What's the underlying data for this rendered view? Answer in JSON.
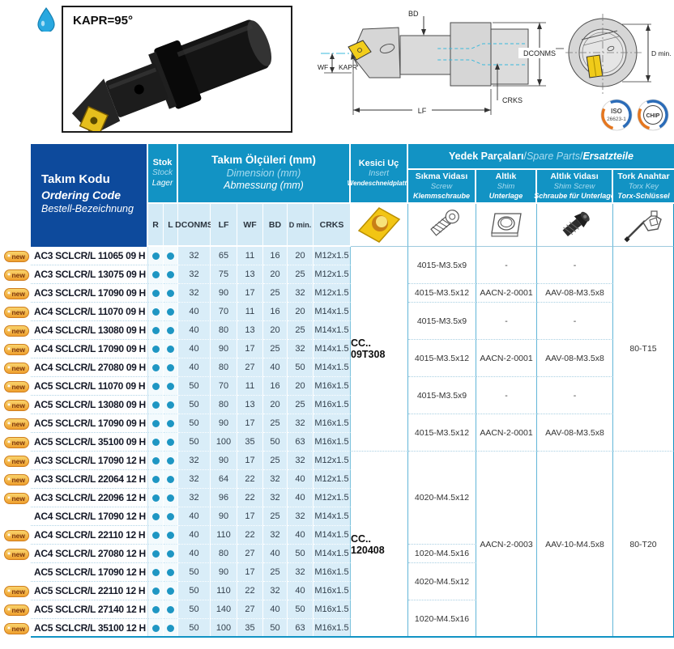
{
  "page": {
    "photo_label": "KAPR=95°"
  },
  "badges": {
    "iso_line1": "ISO",
    "iso_line2": "26623-1",
    "chip": "CHIP"
  },
  "drawing": {
    "labels": {
      "bd": "BD",
      "wf": "WF",
      "kapr": "KAPR",
      "lf": "LF",
      "crks": "CRKS",
      "dconms": "DCONMS",
      "dmin": "D min."
    }
  },
  "colors": {
    "accent_teal": "#1293c4",
    "header_blue": "#0d4a9c",
    "row_light_blue": "#d9edf8",
    "stock_dot": "#1e96c3",
    "new_badge_orange": "#efa02f",
    "insert_yellow": "#f2c514"
  },
  "icons": {
    "coolant_drop": "coolant-drop-icon",
    "insert_photo": "insert-photo",
    "screw_photo": "screw-photo",
    "shim_photo": "shim-photo",
    "shim_screw_photo": "shim-screw-photo",
    "torx_key_photo": "torx-key-photo"
  },
  "table": {
    "ordering_header": {
      "tr": "Takım Kodu",
      "en": "Ordering Code",
      "de": "Bestell-Bezeichnung"
    },
    "stock_header": {
      "tr": "Stok",
      "en": "Stock",
      "de": "Lager"
    },
    "dimensions_header": {
      "tr": "Takım Ölçüleri (mm)",
      "en": "Dimension (mm)",
      "de": "Abmessung (mm)"
    },
    "insert_header": {
      "tr": "Kesici Uç",
      "en": "Insert",
      "de": "Wendeschneidplatte"
    },
    "spare_header": {
      "tr": "Yedek Parçaları",
      "en": "Spare Parts",
      "de": "Ersatzteile",
      "sep": " / "
    },
    "spare_cols": [
      {
        "tr": "Sıkma Vidası",
        "en": "Screw",
        "de": "Klemmschraube"
      },
      {
        "tr": "Altlık",
        "en": "Shim",
        "de": "Unterlage"
      },
      {
        "tr": "Altlık Vidası",
        "en": "Shim Screw",
        "de": "Schraube für Unterlage"
      },
      {
        "tr": "Tork Anahtar",
        "en": "Torx Key",
        "de": "Torx-Schlüssel"
      }
    ],
    "sub_cols": [
      "R",
      "L",
      "DCONMS",
      "LF",
      "WF",
      "BD",
      "D min.",
      "CRKS"
    ],
    "new_label": "new",
    "new_star": "✶",
    "rows": [
      {
        "is_new": true,
        "code": "AC3 SCLCR/L 11065 09 H",
        "r": true,
        "l": true,
        "dconms": 32,
        "lf": 65,
        "wf": 11,
        "bd": 16,
        "dmin": 20,
        "crks": "M12x1.5"
      },
      {
        "is_new": true,
        "code": "AC3 SCLCR/L 13075 09 H",
        "r": true,
        "l": true,
        "dconms": 32,
        "lf": 75,
        "wf": 13,
        "bd": 20,
        "dmin": 25,
        "crks": "M12x1.5"
      },
      {
        "is_new": true,
        "code": "AC3 SCLCR/L 17090 09 H",
        "r": true,
        "l": true,
        "dconms": 32,
        "lf": 90,
        "wf": 17,
        "bd": 25,
        "dmin": 32,
        "crks": "M12x1.5"
      },
      {
        "is_new": true,
        "code": "AC4 SCLCR/L 11070 09 H",
        "r": true,
        "l": true,
        "dconms": 40,
        "lf": 70,
        "wf": 11,
        "bd": 16,
        "dmin": 20,
        "crks": "M14x1.5"
      },
      {
        "is_new": true,
        "code": "AC4 SCLCR/L 13080 09 H",
        "r": true,
        "l": true,
        "dconms": 40,
        "lf": 80,
        "wf": 13,
        "bd": 20,
        "dmin": 25,
        "crks": "M14x1.5"
      },
      {
        "is_new": true,
        "code": "AC4 SCLCR/L 17090 09 H",
        "r": true,
        "l": true,
        "dconms": 40,
        "lf": 90,
        "wf": 17,
        "bd": 25,
        "dmin": 32,
        "crks": "M14x1.5"
      },
      {
        "is_new": true,
        "code": "AC4 SCLCR/L 27080 09 H",
        "r": true,
        "l": true,
        "dconms": 40,
        "lf": 80,
        "wf": 27,
        "bd": 40,
        "dmin": 50,
        "crks": "M14x1.5"
      },
      {
        "is_new": true,
        "code": "AC5 SCLCR/L 11070 09 H",
        "r": true,
        "l": true,
        "dconms": 50,
        "lf": 70,
        "wf": 11,
        "bd": 16,
        "dmin": 20,
        "crks": "M16x1.5"
      },
      {
        "is_new": true,
        "code": "AC5 SCLCR/L 13080 09 H",
        "r": true,
        "l": true,
        "dconms": 50,
        "lf": 80,
        "wf": 13,
        "bd": 20,
        "dmin": 25,
        "crks": "M16x1.5"
      },
      {
        "is_new": true,
        "code": "AC5 SCLCR/L 17090 09 H",
        "r": true,
        "l": true,
        "dconms": 50,
        "lf": 90,
        "wf": 17,
        "bd": 25,
        "dmin": 32,
        "crks": "M16x1.5"
      },
      {
        "is_new": true,
        "code": "AC5 SCLCR/L 35100 09 H",
        "r": true,
        "l": true,
        "dconms": 50,
        "lf": 100,
        "wf": 35,
        "bd": 50,
        "dmin": 63,
        "crks": "M16x1.5"
      },
      {
        "is_new": true,
        "code": "AC3 SCLCR/L 17090 12 H",
        "r": true,
        "l": true,
        "dconms": 32,
        "lf": 90,
        "wf": 17,
        "bd": 25,
        "dmin": 32,
        "crks": "M12x1.5"
      },
      {
        "is_new": true,
        "code": "AC3 SCLCR/L 22064 12 H",
        "r": true,
        "l": true,
        "dconms": 32,
        "lf": 64,
        "wf": 22,
        "bd": 32,
        "dmin": 40,
        "crks": "M12x1.5"
      },
      {
        "is_new": true,
        "code": "AC3 SCLCR/L 22096 12 H",
        "r": true,
        "l": true,
        "dconms": 32,
        "lf": 96,
        "wf": 22,
        "bd": 32,
        "dmin": 40,
        "crks": "M12x1.5"
      },
      {
        "is_new": false,
        "code": "AC4 SCLCR/L 17090 12 H",
        "r": true,
        "l": true,
        "dconms": 40,
        "lf": 90,
        "wf": 17,
        "bd": 25,
        "dmin": 32,
        "crks": "M14x1.5"
      },
      {
        "is_new": true,
        "code": "AC4 SCLCR/L 22110 12 H",
        "r": true,
        "l": true,
        "dconms": 40,
        "lf": 110,
        "wf": 22,
        "bd": 32,
        "dmin": 40,
        "crks": "M14x1.5"
      },
      {
        "is_new": true,
        "code": "AC4 SCLCR/L 27080 12 H",
        "r": true,
        "l": true,
        "dconms": 40,
        "lf": 80,
        "wf": 27,
        "bd": 40,
        "dmin": 50,
        "crks": "M14x1.5"
      },
      {
        "is_new": false,
        "code": "AC5 SCLCR/L 17090 12 H",
        "r": true,
        "l": true,
        "dconms": 50,
        "lf": 90,
        "wf": 17,
        "bd": 25,
        "dmin": 32,
        "crks": "M16x1.5"
      },
      {
        "is_new": true,
        "code": "AC5 SCLCR/L 22110 12 H",
        "r": true,
        "l": true,
        "dconms": 50,
        "lf": 110,
        "wf": 22,
        "bd": 32,
        "dmin": 40,
        "crks": "M16x1.5"
      },
      {
        "is_new": true,
        "code": "AC5 SCLCR/L 27140 12 H",
        "r": true,
        "l": true,
        "dconms": 50,
        "lf": 140,
        "wf": 27,
        "bd": 40,
        "dmin": 50,
        "crks": "M16x1.5"
      },
      {
        "is_new": true,
        "code": "AC5 SCLCR/L 35100 12 H",
        "r": true,
        "l": true,
        "dconms": 50,
        "lf": 100,
        "wf": 35,
        "bd": 50,
        "dmin": 63,
        "crks": "M16x1.5"
      }
    ],
    "merged": {
      "insert": [
        {
          "start": 1,
          "span": 11,
          "text": "CC.. 09T308"
        },
        {
          "start": 12,
          "span": 10,
          "text": "CC.. 120408"
        }
      ],
      "screw": [
        {
          "start": 1,
          "span": 2,
          "text": "4015-M3.5x9"
        },
        {
          "start": 3,
          "span": 1,
          "text": "4015-M3.5x12"
        },
        {
          "start": 4,
          "span": 2,
          "text": "4015-M3.5x9"
        },
        {
          "start": 6,
          "span": 2,
          "text": "4015-M3.5x12"
        },
        {
          "start": 8,
          "span": 2,
          "text": "4015-M3.5x9"
        },
        {
          "start": 10,
          "span": 2,
          "text": "4015-M3.5x12"
        },
        {
          "start": 12,
          "span": 5,
          "text": "4020-M4.5x12"
        },
        {
          "start": 17,
          "span": 1,
          "text": "1020-M4.5x16"
        },
        {
          "start": 18,
          "span": 2,
          "text": "4020-M4.5x12"
        },
        {
          "start": 20,
          "span": 2,
          "text": "1020-M4.5x16"
        }
      ],
      "shim": [
        {
          "start": 1,
          "span": 2,
          "text": "-"
        },
        {
          "start": 3,
          "span": 1,
          "text": "AACN-2-0001"
        },
        {
          "start": 4,
          "span": 2,
          "text": "-"
        },
        {
          "start": 6,
          "span": 2,
          "text": "AACN-2-0001"
        },
        {
          "start": 8,
          "span": 2,
          "text": "-"
        },
        {
          "start": 10,
          "span": 2,
          "text": "AACN-2-0001"
        },
        {
          "start": 12,
          "span": 10,
          "text": "AACN-2-0003"
        }
      ],
      "shim_screw": [
        {
          "start": 1,
          "span": 2,
          "text": "-"
        },
        {
          "start": 3,
          "span": 1,
          "text": "AAV-08-M3.5x8"
        },
        {
          "start": 4,
          "span": 2,
          "text": "-"
        },
        {
          "start": 6,
          "span": 2,
          "text": "AAV-08-M3.5x8"
        },
        {
          "start": 8,
          "span": 2,
          "text": "-"
        },
        {
          "start": 10,
          "span": 2,
          "text": "AAV-08-M3.5x8"
        },
        {
          "start": 12,
          "span": 10,
          "text": "AAV-10-M4.5x8"
        }
      ],
      "torx": [
        {
          "start": 1,
          "span": 11,
          "text": "80-T15"
        },
        {
          "start": 12,
          "span": 10,
          "text": "80-T20"
        }
      ]
    }
  }
}
